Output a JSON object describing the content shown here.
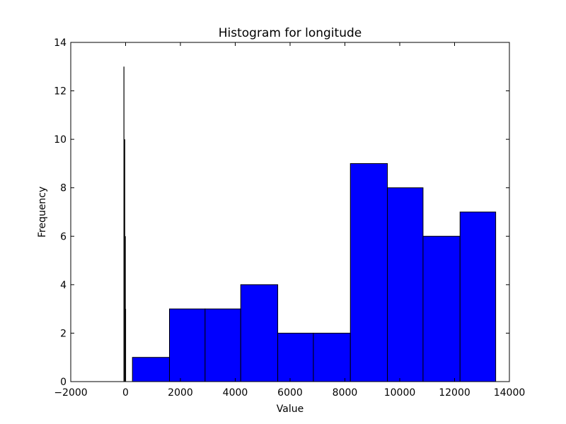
{
  "chart_data": {
    "type": "bar",
    "title": "Histogram for longitude",
    "xlabel": "Value",
    "ylabel": "Frequency",
    "xlim": [
      -2000,
      14000
    ],
    "ylim": [
      0,
      14
    ],
    "xticks": [
      -2000,
      0,
      2000,
      4000,
      6000,
      8000,
      10000,
      12000,
      14000
    ],
    "yticks": [
      0,
      2,
      4,
      6,
      8,
      10,
      12,
      14
    ],
    "grid": false,
    "bar_color": "#0000ff",
    "edge_color": "#000000",
    "bins": [
      {
        "start": 250,
        "end": 1600,
        "count": 1
      },
      {
        "start": 1600,
        "end": 2900,
        "count": 3
      },
      {
        "start": 2900,
        "end": 4200,
        "count": 3
      },
      {
        "start": 4200,
        "end": 5550,
        "count": 4
      },
      {
        "start": 5550,
        "end": 6850,
        "count": 2
      },
      {
        "start": 6850,
        "end": 8200,
        "count": 2
      },
      {
        "start": 8200,
        "end": 9550,
        "count": 9
      },
      {
        "start": 9550,
        "end": 10850,
        "count": 8
      },
      {
        "start": 10850,
        "end": 12200,
        "count": 6
      },
      {
        "start": 12200,
        "end": 13500,
        "count": 7
      }
    ],
    "spikes": [
      {
        "x": -60,
        "count": 13
      },
      {
        "x": -30,
        "count": 10
      },
      {
        "x": -10,
        "count": 6
      },
      {
        "x": 0,
        "count": 3
      }
    ]
  }
}
